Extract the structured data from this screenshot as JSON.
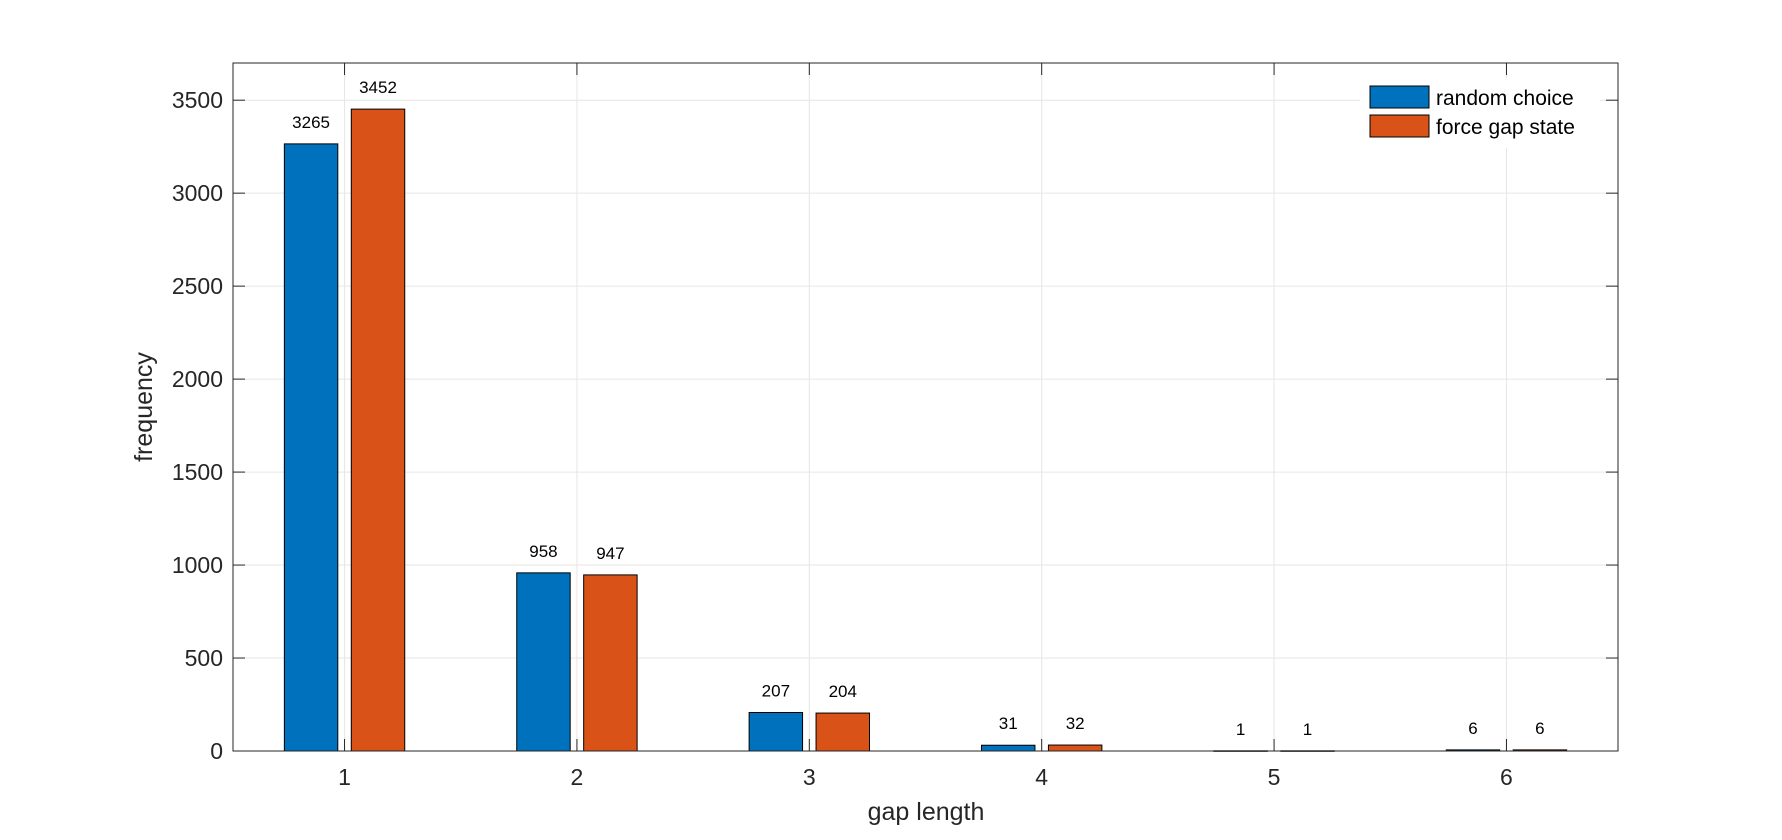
{
  "chart_data": {
    "type": "bar",
    "categories": [
      "1",
      "2",
      "3",
      "4",
      "5",
      "6"
    ],
    "series": [
      {
        "name": "random choice",
        "color": "#0072BD",
        "values": [
          3265,
          958,
          207,
          31,
          1,
          6
        ]
      },
      {
        "name": "force gap state",
        "color": "#D95319",
        "values": [
          3452,
          947,
          204,
          32,
          1,
          6
        ]
      }
    ],
    "xlabel": "gap length",
    "ylabel": "frequency",
    "ylim": [
      0,
      3700
    ],
    "yticks": [
      0,
      500,
      1000,
      1500,
      2000,
      2500,
      3000,
      3500
    ],
    "xticks": [
      1,
      2,
      3,
      4,
      5,
      6
    ],
    "grid": true,
    "legend_position": "top-right",
    "data_labels": true
  }
}
